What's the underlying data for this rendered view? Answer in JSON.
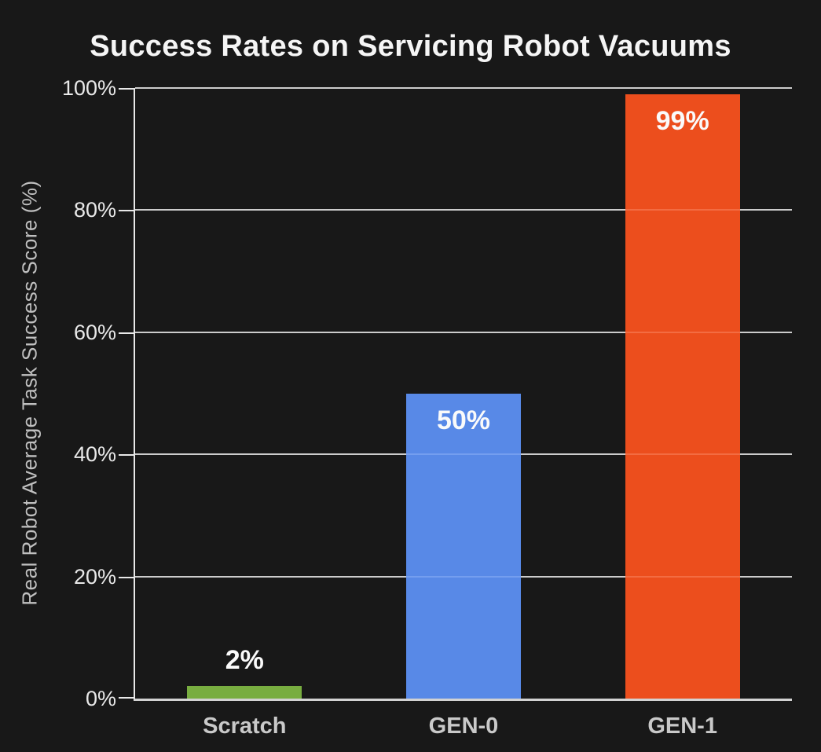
{
  "colors": {
    "background": "#181818",
    "title_text": "#f5f5f5",
    "axis_line": "#e8e8e8",
    "baseline": "#d2d2d2",
    "gridline": "#c4c4c4",
    "tick_label_text": "#e9e9e9",
    "x_label_text": "#c9c9c9",
    "y_axis_label_text": "#c0c0c0",
    "value_label_text": "#fafafa"
  },
  "chart_data": {
    "type": "bar",
    "title": "Success Rates on Servicing Robot Vacuums",
    "xlabel": "",
    "ylabel": "Real Robot Average Task Success Score (%)",
    "categories": [
      "Scratch",
      "GEN-0",
      "GEN-1"
    ],
    "values": [
      2,
      50,
      99
    ],
    "value_labels": [
      "2%",
      "50%",
      "99%"
    ],
    "bar_colors": [
      "#7CB342",
      "#5B8DEE",
      "#F4511E"
    ],
    "yticks": [
      0,
      20,
      40,
      60,
      80,
      100
    ],
    "ytick_labels": [
      "0%",
      "20%",
      "40%",
      "60%",
      "80%",
      "100%"
    ],
    "ylim": [
      0,
      100
    ],
    "grid": true,
    "legend": false
  }
}
